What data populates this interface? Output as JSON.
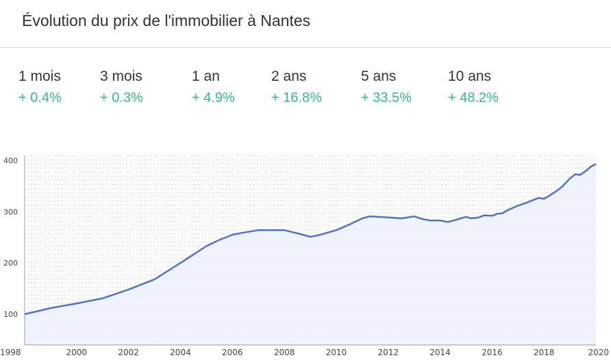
{
  "title": "Évolution du prix de l'immobilier à Nantes",
  "stats": [
    {
      "label": "1 mois",
      "value": "+ 0.4%"
    },
    {
      "label": "3 mois",
      "value": "+ 0.3%"
    },
    {
      "label": "1 an",
      "value": "+ 4.9%"
    },
    {
      "label": "2 ans",
      "value": "+ 16.8%"
    },
    {
      "label": "5 ans",
      "value": "+ 33.5%"
    },
    {
      "label": "10 ans",
      "value": "+ 48.2%"
    }
  ],
  "colors": {
    "positive": "#2ebd8a",
    "line": "#4a72d4",
    "area": "#edf0fb",
    "grid": "#c8c8c8"
  },
  "chart_data": {
    "type": "area",
    "title": "",
    "xlabel": "",
    "ylabel": "",
    "xlim": [
      1998,
      2020
    ],
    "ylim": [
      40,
      410
    ],
    "grid": true,
    "x_ticks": [
      1998,
      2000,
      2002,
      2004,
      2006,
      2008,
      2010,
      2012,
      2014,
      2016,
      2018,
      2020
    ],
    "y_ticks": [
      100,
      200,
      300,
      400
    ],
    "series": [
      {
        "x": [
          1998,
          1999,
          2000,
          2001,
          2002,
          2003,
          2004,
          2005,
          2005.5,
          2006,
          2006.5,
          2007,
          2007.5,
          2008,
          2008.5,
          2009,
          2009.3,
          2010,
          2010.5,
          2011,
          2011.3,
          2012,
          2012.5,
          2013,
          2013.3,
          2013.6,
          2014,
          2014.3,
          2014.6,
          2015,
          2015.2,
          2015.5,
          2015.7,
          2016,
          2016.2,
          2016.4,
          2016.6,
          2017,
          2017.3,
          2017.5,
          2017.8,
          2018,
          2018.2,
          2018.5,
          2018.7,
          2019,
          2019.2,
          2019.4,
          2019.6,
          2019.8,
          2020
        ],
        "y": [
          100,
          112,
          121,
          131,
          148,
          168,
          200,
          233,
          245,
          255,
          260,
          264,
          264,
          264,
          258,
          251,
          254,
          264,
          275,
          287,
          291,
          289,
          287,
          291,
          286,
          283,
          283,
          280,
          284,
          290,
          287,
          289,
          293,
          292,
          296,
          297,
          303,
          312,
          317,
          321,
          327,
          325,
          331,
          341,
          349,
          365,
          373,
          372,
          379,
          388,
          393
        ]
      }
    ]
  }
}
